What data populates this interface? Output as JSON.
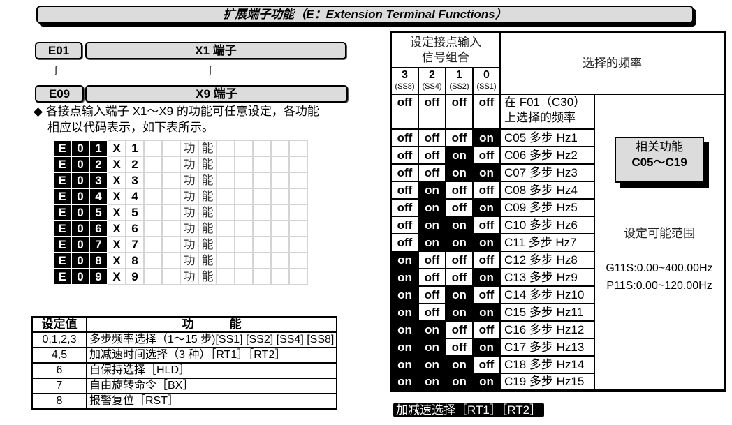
{
  "title": "扩展端子功能（E：Extension Terminal Functions）",
  "params": {
    "first": {
      "code": "E01",
      "name": "X1 端子"
    },
    "tilde": "∫",
    "last": {
      "code": "E09",
      "name": "X9 端子"
    }
  },
  "bullet": {
    "symbol": "◆",
    "line1": "各接点输入端子 X1～X9 的功能可任意设定，各功能",
    "line2": "相应以代码表示，如下表所示。"
  },
  "grid": {
    "rows": [
      [
        "E",
        "0",
        "1",
        "X",
        "1"
      ],
      [
        "E",
        "0",
        "2",
        "X",
        "2"
      ],
      [
        "E",
        "0",
        "3",
        "X",
        "3"
      ],
      [
        "E",
        "0",
        "4",
        "X",
        "4"
      ],
      [
        "E",
        "0",
        "5",
        "X",
        "5"
      ],
      [
        "E",
        "0",
        "6",
        "X",
        "6"
      ],
      [
        "E",
        "0",
        "7",
        "X",
        "7"
      ],
      [
        "E",
        "0",
        "8",
        "X",
        "8"
      ],
      [
        "E",
        "0",
        "9",
        "X",
        "9"
      ]
    ],
    "fn1": "功",
    "fn2": "能"
  },
  "function_table": {
    "headers": [
      "设定值",
      "功　　　能"
    ],
    "rows": [
      [
        "0,1,2,3",
        "多步频率选择（1～15 步)[SS1] [SS2] [SS4] [SS8]"
      ],
      [
        "4,5",
        "加减速时间选择（3 种）［RT1］［RT2］"
      ],
      [
        "6",
        "自保持选择［HLD］"
      ],
      [
        "7",
        "自由旋转命令［BX］"
      ],
      [
        "8",
        "报警复位［RST］"
      ]
    ]
  },
  "freq_table": {
    "header_combo": "设定接点输入信号组合",
    "header_freq": "选择的频率",
    "bits": [
      {
        "n": "3",
        "s": "(SS8)"
      },
      {
        "n": "2",
        "s": "(SS4)"
      },
      {
        "n": "1",
        "s": "(SS2)"
      },
      {
        "n": "0",
        "s": "(SS1)"
      }
    ],
    "first_row": {
      "states": [
        "off",
        "off",
        "off",
        "off"
      ],
      "freq": "在 F01（C30）上选择的频率"
    },
    "rows": [
      {
        "states": [
          "off",
          "off",
          "off",
          "on"
        ],
        "freq": "C05 多步 Hz1"
      },
      {
        "states": [
          "off",
          "off",
          "on",
          "off"
        ],
        "freq": "C06 多步 Hz2"
      },
      {
        "states": [
          "off",
          "off",
          "on",
          "on"
        ],
        "freq": "C07 多步 Hz3"
      },
      {
        "states": [
          "off",
          "on",
          "off",
          "off"
        ],
        "freq": "C08 多步 Hz4"
      },
      {
        "states": [
          "off",
          "on",
          "off",
          "on"
        ],
        "freq": "C09 多步 Hz5"
      },
      {
        "states": [
          "off",
          "on",
          "on",
          "off"
        ],
        "freq": "C10 多步 Hz6"
      },
      {
        "states": [
          "off",
          "on",
          "on",
          "on"
        ],
        "freq": "C11 多步 Hz7"
      },
      {
        "states": [
          "on",
          "off",
          "off",
          "off"
        ],
        "freq": "C12 多步 Hz8"
      },
      {
        "states": [
          "on",
          "off",
          "off",
          "on"
        ],
        "freq": "C13 多步 Hz9"
      },
      {
        "states": [
          "on",
          "off",
          "on",
          "off"
        ],
        "freq": "C14 多步 Hz10"
      },
      {
        "states": [
          "on",
          "off",
          "on",
          "on"
        ],
        "freq": "C15 多步 Hz11"
      },
      {
        "states": [
          "on",
          "on",
          "off",
          "off"
        ],
        "freq": "C16 多步 Hz12"
      },
      {
        "states": [
          "on",
          "on",
          "off",
          "on"
        ],
        "freq": "C17 多步 Hz13"
      },
      {
        "states": [
          "on",
          "on",
          "on",
          "off"
        ],
        "freq": "C18 多步 Hz14"
      },
      {
        "states": [
          "on",
          "on",
          "on",
          "on"
        ],
        "freq": "C19 多步 Hz15"
      }
    ],
    "related_label": "相关功能",
    "related_value": "C05～C19",
    "range_label": "设定可能范围",
    "range_g11s": "G11S:0.00~400.00Hz",
    "range_p11s": "P11S:0.00~120.00Hz"
  },
  "section_heading": "加减速选择［RT1］［RT2］"
}
